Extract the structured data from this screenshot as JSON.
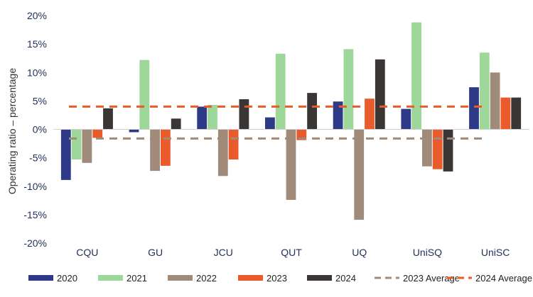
{
  "chart_data": {
    "type": "bar",
    "title": "",
    "xlabel": "",
    "ylabel": "Operating ratio – percentage",
    "ylim": [
      -20,
      20
    ],
    "yticks": [
      20,
      15,
      10,
      5,
      0,
      -5,
      -10,
      -15,
      -20
    ],
    "ytick_labels": [
      "20%",
      "15%",
      "10%",
      "5%",
      "0%",
      "-5%",
      "-10%",
      "-15%",
      "-20%"
    ],
    "categories": [
      "CQU",
      "GU",
      "JCU",
      "QUT",
      "UQ",
      "UniSQ",
      "UniSC"
    ],
    "series": [
      {
        "name": "2020",
        "color": "#2e3a87",
        "values": [
          -8.9,
          -0.5,
          4.0,
          2.1,
          4.9,
          3.6,
          7.4
        ]
      },
      {
        "name": "2021",
        "color": "#9dd79a",
        "values": [
          -5.3,
          12.2,
          4.3,
          13.3,
          14.1,
          18.8,
          13.5
        ]
      },
      {
        "name": "2022",
        "color": "#a08a7a",
        "values": [
          -5.9,
          -7.3,
          -8.2,
          -12.4,
          -15.9,
          -6.5,
          10.0
        ]
      },
      {
        "name": "2023",
        "color": "#ea5a2b",
        "values": [
          -1.5,
          -6.4,
          -5.3,
          -1.9,
          5.4,
          -7.0,
          5.6
        ]
      },
      {
        "name": "2024",
        "color": "#3a3636",
        "values": [
          3.7,
          1.9,
          5.3,
          6.4,
          12.3,
          -7.4,
          5.6
        ]
      }
    ],
    "reference_lines": [
      {
        "name": "2023 Average",
        "value": -1.6,
        "color": "#a08a7a",
        "style": "dashed"
      },
      {
        "name": "2024 Average",
        "value": 4.0,
        "color": "#ea5a2b",
        "style": "dashed"
      }
    ],
    "legend_position": "bottom"
  }
}
